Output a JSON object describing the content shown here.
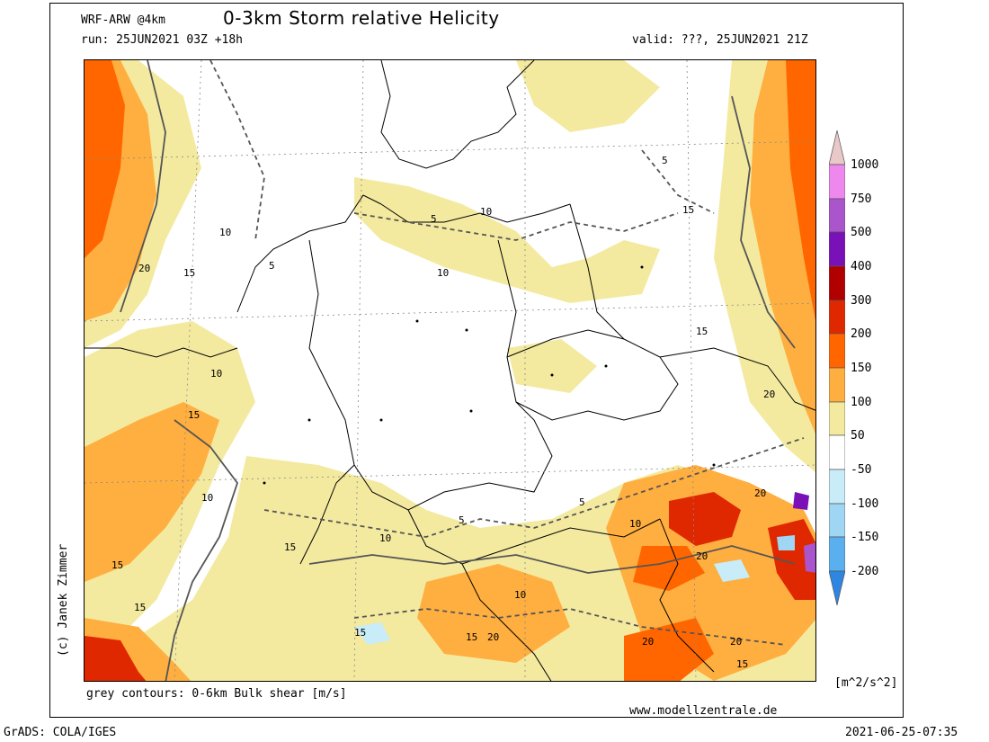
{
  "header": {
    "model": "WRF-ARW @4km",
    "title": "0-3km Storm relative Helicity",
    "run": "run: 25JUN2021 03Z +18h",
    "valid": "valid: ???, 25JUN2021 21Z"
  },
  "footer": {
    "contours_note": "grey contours: 0-6km Bulk shear [m/s]",
    "website": "www.modellzentrale.de",
    "grads": "GrADS: COLA/IGES",
    "timestamp": "2021-06-25-07:35",
    "credit": "(c) Janek Zimmer",
    "units": "[m^2/s^2]"
  },
  "legend": {
    "labels": [
      "1000",
      "750",
      "500",
      "400",
      "300",
      "200",
      "150",
      "100",
      "50",
      "-50",
      "-100",
      "-150",
      "-200"
    ],
    "colors": {
      "above_1000": "#e8c8c8",
      "750_1000": "#ee88ee",
      "500_750": "#aa55cc",
      "400_500": "#7a10b8",
      "300_400": "#b00000",
      "200_300": "#e02800",
      "150_200": "#ff6600",
      "100_150": "#ffae40",
      "50_100": "#f3eaa0",
      "neutral": "#ffffff",
      "m100_m50": "#c8ecf8",
      "m150_m100": "#9ed6f4",
      "m200_m150": "#5ab0ee",
      "below_m200": "#2e86e0"
    }
  },
  "contour_labels": [
    "5",
    "10",
    "15",
    "20"
  ]
}
